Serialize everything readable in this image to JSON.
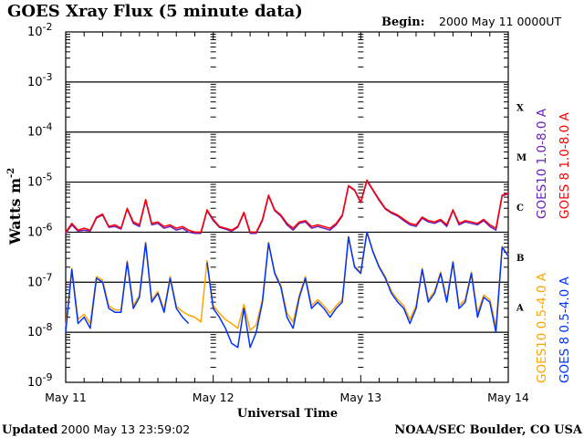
{
  "chart_data": {
    "type": "line",
    "title": "GOES Xray Flux (5 minute data)",
    "begin_label": "Begin:",
    "begin_value": "2000 May 11 0000UT",
    "ylabel": "Watts m",
    "ylabel_sup": "-2",
    "xlabel": "Universal Time",
    "yscale": "log",
    "ylim": [
      1e-09,
      0.01
    ],
    "y_ticks": [
      {
        "base": "10",
        "exp": "-9",
        "value": 1e-09
      },
      {
        "base": "10",
        "exp": "-8",
        "value": 1e-08
      },
      {
        "base": "10",
        "exp": "-7",
        "value": 1e-07
      },
      {
        "base": "10",
        "exp": "-6",
        "value": 1e-06
      },
      {
        "base": "10",
        "exp": "-5",
        "value": 1e-05
      },
      {
        "base": "10",
        "exp": "-4",
        "value": 0.0001
      },
      {
        "base": "10",
        "exp": "-3",
        "value": 0.001
      },
      {
        "base": "10",
        "exp": "-2",
        "value": 0.01
      }
    ],
    "x_unit": "hours since begin",
    "xlim": [
      0,
      72
    ],
    "x_ticks": [
      {
        "label": "May 11",
        "value": 0
      },
      {
        "label": "May 12",
        "value": 24
      },
      {
        "label": "May 13",
        "value": 48
      },
      {
        "label": "May 14",
        "value": 72
      }
    ],
    "grid": "horizontal lines at decades 1e-8 to 1e-3",
    "flare_classes": [
      {
        "label": "X",
        "value": 0.000316
      },
      {
        "label": "M",
        "value": 3.16e-05
      },
      {
        "label": "C",
        "value": 3.16e-06
      },
      {
        "label": "B",
        "value": 3.16e-07
      },
      {
        "label": "A",
        "value": 3.16e-08
      }
    ],
    "x": [
      0,
      1,
      2,
      3,
      4,
      5,
      6,
      7,
      8,
      9,
      10,
      11,
      12,
      13,
      14,
      15,
      16,
      17,
      18,
      19,
      20,
      21,
      22,
      23,
      24,
      25,
      26,
      27,
      28,
      29,
      30,
      31,
      32,
      33,
      34,
      35,
      36,
      37,
      38,
      39,
      40,
      41,
      42,
      43,
      44,
      45,
      46,
      47,
      48,
      49,
      50,
      51,
      52,
      53,
      54,
      55,
      56,
      57,
      58,
      59,
      60,
      61,
      62,
      63,
      64,
      65,
      66,
      67,
      68,
      69,
      70,
      71,
      72
    ],
    "series": [
      {
        "name": "GOES10 1.0-8.0 A",
        "color": "#6a1fbf",
        "values": [
          9.5e-07,
          1.4e-06,
          1.05e-06,
          1.1e-06,
          1.05e-06,
          1.9e-06,
          2.2e-06,
          1.25e-06,
          1.3e-06,
          1.15e-06,
          2.9e-06,
          1.5e-06,
          1.3e-06,
          4.3e-06,
          1.4e-06,
          1.5e-06,
          1.2e-06,
          1.3e-06,
          1.1e-06,
          1.2e-06,
          1e-06,
          9.5e-07,
          9.5e-07,
          2.7e-06,
          1.7e-06,
          1.25e-06,
          1.15e-06,
          1.05e-06,
          1.25e-06,
          2.4e-06,
          9.5e-07,
          9.5e-07,
          1.7e-06,
          5.3e-06,
          2.7e-06,
          2.1e-06,
          1.4e-06,
          1.1e-06,
          1.5e-06,
          1.6e-06,
          1.2e-06,
          1.3e-06,
          1.2e-06,
          1.1e-06,
          1.4e-06,
          2.1e-06,
          8.3e-06,
          6.8e-06,
          3.9e-06,
          1.05e-05,
          6.8e-06,
          4.3e-06,
          2.9e-06,
          2.4e-06,
          2.1e-06,
          1.7e-06,
          1.4e-06,
          1.3e-06,
          1.9e-06,
          1.6e-06,
          1.5e-06,
          1.7e-06,
          1.3e-06,
          2.7e-06,
          1.4e-06,
          1.6e-06,
          1.5e-06,
          1.4e-06,
          1.7e-06,
          1.3e-06,
          1.1e-06,
          5.3e-06,
          5.8e-06
        ]
      },
      {
        "name": "GOES 8 1.0-8.0 A",
        "color": "#ff0000",
        "values": [
          1e-06,
          1.5e-06,
          1.1e-06,
          1.2e-06,
          1.1e-06,
          2e-06,
          2.3e-06,
          1.3e-06,
          1.4e-06,
          1.2e-06,
          3e-06,
          1.6e-06,
          1.4e-06,
          4.5e-06,
          1.5e-06,
          1.6e-06,
          1.3e-06,
          1.4e-06,
          1.2e-06,
          1.3e-06,
          1.1e-06,
          1e-06,
          1e-06,
          2.8e-06,
          1.8e-06,
          1.3e-06,
          1.2e-06,
          1.1e-06,
          1.3e-06,
          2.5e-06,
          1e-06,
          1e-06,
          1.8e-06,
          5.5e-06,
          2.8e-06,
          2.2e-06,
          1.5e-06,
          1.2e-06,
          1.6e-06,
          1.7e-06,
          1.3e-06,
          1.4e-06,
          1.3e-06,
          1.2e-06,
          1.5e-06,
          2.2e-06,
          8.5e-06,
          7e-06,
          4e-06,
          1.1e-05,
          7e-06,
          4.5e-06,
          3e-06,
          2.5e-06,
          2.2e-06,
          1.8e-06,
          1.5e-06,
          1.4e-06,
          2e-06,
          1.7e-06,
          1.6e-06,
          1.8e-06,
          1.4e-06,
          2.8e-06,
          1.5e-06,
          1.7e-06,
          1.6e-06,
          1.5e-06,
          1.8e-06,
          1.4e-06,
          1.2e-06,
          5.5e-06,
          6e-06
        ]
      },
      {
        "name": "GOES10 0.5-4.0 A",
        "color": "#ffa500",
        "values": [
          1.3e-08,
          1.9e-07,
          1.8e-08,
          2.3e-08,
          1.5e-08,
          1.3e-07,
          1.1e-07,
          3.4e-08,
          2.8e-08,
          2.8e-08,
          2.7e-07,
          3.4e-08,
          5.5e-08,
          6.3e-07,
          4.4e-08,
          6.5e-08,
          2.8e-08,
          1.3e-07,
          3.3e-08,
          2.6e-08,
          2.2e-08,
          2e-08,
          1.6e-08,
          2.7e-07,
          3.4e-08,
          2.4e-08,
          1.8e-08,
          1.5e-08,
          1.2e-08,
          3.6e-08,
          1.1e-08,
          1.4e-08,
          4.5e-08,
          6.3e-07,
          1.6e-07,
          8.8e-08,
          2.4e-08,
          1.6e-08,
          5.5e-08,
          1.3e-07,
          3.4e-08,
          4.5e-08,
          3.4e-08,
          2.4e-08,
          3.4e-08,
          4.5e-08,
          8.2e-07,
          2.1e-07,
          1.6e-07,
          1e-06,
          4.2e-07,
          2.1e-07,
          1.3e-07,
          6.6e-08,
          4.5e-08,
          3.4e-08,
          1.8e-08,
          3.4e-08,
          1.9e-07,
          4.5e-08,
          6.6e-08,
          1.6e-07,
          4.5e-08,
          2.6e-07,
          3.4e-08,
          4.5e-08,
          1.6e-07,
          2.4e-08,
          5.5e-08,
          4.5e-08,
          1.3e-08,
          5.2e-07,
          3.5e-07
        ]
      },
      {
        "name": "GOES 8 0.5-4.0 A",
        "color": "#0033ff",
        "values": [
          1e-08,
          1.8e-07,
          1.5e-08,
          2e-08,
          1.2e-08,
          1.2e-07,
          1e-07,
          3e-08,
          2.5e-08,
          2.5e-08,
          2.5e-07,
          3e-08,
          5e-08,
          6e-07,
          4e-08,
          6e-08,
          2.5e-08,
          1.2e-07,
          3e-08,
          2e-08,
          1.5e-08,
          null,
          null,
          2.5e-07,
          3e-08,
          2e-08,
          1.2e-08,
          6e-09,
          5e-09,
          3e-08,
          5e-09,
          1e-08,
          4e-08,
          6e-07,
          1.5e-07,
          8e-08,
          2e-08,
          1.2e-08,
          5e-08,
          1.2e-07,
          3e-08,
          4e-08,
          3e-08,
          2e-08,
          3e-08,
          4e-08,
          8e-07,
          2e-07,
          1.5e-07,
          1e-06,
          4e-07,
          2e-07,
          1.2e-07,
          6e-08,
          4e-08,
          3e-08,
          1.5e-08,
          3e-08,
          1.8e-07,
          4e-08,
          6e-08,
          1.5e-07,
          4e-08,
          2.5e-07,
          3e-08,
          4e-08,
          1.5e-07,
          2e-08,
          5e-08,
          4e-08,
          1e-08,
          5e-07,
          3.3e-07
        ]
      }
    ],
    "legend_placement": "right, vertical text"
  },
  "footer": {
    "updated_label": "Updated",
    "updated_value": "2000 May 13 23:59:02",
    "credit": "NOAA/SEC Boulder, CO USA"
  }
}
